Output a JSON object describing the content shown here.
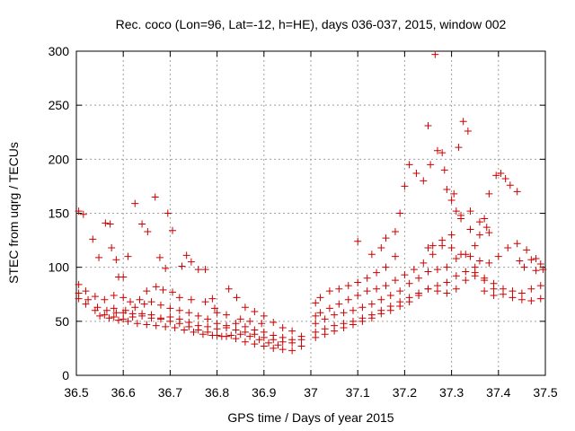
{
  "chart_data": {
    "type": "scatter",
    "title": "Rec. coco (Lon=96, Lat=-12, h=HE), days 036-037, 2015, window 002",
    "xlabel": "GPS time / Days of year 2015",
    "ylabel": "STEC from uqrg / TECUs",
    "xlim": [
      36.5,
      37.5
    ],
    "ylim": [
      0,
      300
    ],
    "xticks": [
      "36.5",
      "36.6",
      "36.7",
      "36.8",
      "36.9",
      "37",
      "37.1",
      "37.2",
      "37.3",
      "37.4",
      "37.5"
    ],
    "yticks": [
      "0",
      "50",
      "100",
      "150",
      "200",
      "250",
      "300"
    ],
    "grid": true,
    "marker": "+",
    "color": "#cc0000",
    "series": [
      {
        "points": [
          [
            36.505,
            152
          ],
          [
            36.515,
            149
          ],
          [
            36.535,
            126
          ],
          [
            36.548,
            109
          ],
          [
            36.562,
            141
          ],
          [
            36.572,
            140
          ],
          [
            36.575,
            118
          ],
          [
            36.585,
            107
          ],
          [
            36.59,
            91
          ],
          [
            36.6,
            91
          ],
          [
            36.61,
            110
          ],
          [
            36.625,
            159
          ],
          [
            36.64,
            140
          ],
          [
            36.652,
            133
          ],
          [
            36.668,
            165
          ],
          [
            36.678,
            109
          ],
          [
            36.69,
            99
          ],
          [
            36.695,
            150
          ],
          [
            36.705,
            134
          ],
          [
            36.725,
            101
          ],
          [
            36.735,
            111
          ],
          [
            36.745,
            105
          ],
          [
            36.76,
            98
          ],
          [
            36.775,
            98
          ],
          [
            36.79,
            71
          ],
          [
            36.8,
            58
          ],
          [
            36.825,
            80
          ],
          [
            36.842,
            72
          ],
          [
            36.86,
            63
          ],
          [
            36.88,
            59
          ],
          [
            36.9,
            55
          ],
          [
            36.92,
            49
          ],
          [
            36.94,
            44
          ],
          [
            36.96,
            41
          ],
          [
            36.98,
            36
          ],
          [
            36.505,
            84
          ],
          [
            36.52,
            78
          ],
          [
            36.54,
            73
          ],
          [
            36.56,
            70
          ],
          [
            36.58,
            74
          ],
          [
            36.6,
            72
          ],
          [
            36.615,
            68
          ],
          [
            36.635,
            70
          ],
          [
            36.65,
            78
          ],
          [
            36.67,
            82
          ],
          [
            36.685,
            79
          ],
          [
            36.705,
            77
          ],
          [
            36.72,
            72
          ],
          [
            36.745,
            70
          ],
          [
            36.775,
            68
          ],
          [
            36.795,
            62
          ],
          [
            36.82,
            56
          ],
          [
            36.85,
            52
          ],
          [
            36.87,
            50
          ],
          [
            36.895,
            48
          ],
          [
            36.505,
            76
          ],
          [
            36.525,
            70
          ],
          [
            36.545,
            63
          ],
          [
            36.565,
            60
          ],
          [
            36.585,
            58
          ],
          [
            36.605,
            60
          ],
          [
            36.625,
            63
          ],
          [
            36.645,
            66
          ],
          [
            36.66,
            68
          ],
          [
            36.68,
            65
          ],
          [
            36.7,
            62
          ],
          [
            36.72,
            60
          ],
          [
            36.74,
            58
          ],
          [
            36.76,
            55
          ],
          [
            36.78,
            52
          ],
          [
            36.8,
            48
          ],
          [
            36.82,
            44
          ],
          [
            36.84,
            42
          ],
          [
            36.86,
            40
          ],
          [
            36.88,
            38
          ],
          [
            36.9,
            35
          ],
          [
            36.92,
            33
          ],
          [
            36.94,
            31
          ],
          [
            36.96,
            30
          ],
          [
            36.98,
            33
          ],
          [
            36.505,
            71
          ],
          [
            36.52,
            66
          ],
          [
            36.54,
            60
          ],
          [
            36.56,
            56
          ],
          [
            36.58,
            54
          ],
          [
            36.6,
            52
          ],
          [
            36.62,
            54
          ],
          [
            36.64,
            57
          ],
          [
            36.66,
            56
          ],
          [
            36.68,
            53
          ],
          [
            36.7,
            50
          ],
          [
            36.72,
            48
          ],
          [
            36.74,
            45
          ],
          [
            36.76,
            42
          ],
          [
            36.78,
            40
          ],
          [
            36.8,
            37
          ],
          [
            36.82,
            36
          ],
          [
            36.84,
            34
          ],
          [
            36.86,
            31
          ],
          [
            36.88,
            29
          ],
          [
            36.9,
            27
          ],
          [
            36.92,
            25
          ],
          [
            36.94,
            24
          ],
          [
            36.96,
            23
          ],
          [
            36.98,
            27
          ],
          [
            36.55,
            55
          ],
          [
            36.57,
            53
          ],
          [
            36.59,
            51
          ],
          [
            36.61,
            50
          ],
          [
            36.63,
            48
          ],
          [
            36.65,
            47
          ],
          [
            36.67,
            46
          ],
          [
            36.69,
            45
          ],
          [
            36.71,
            44
          ],
          [
            36.73,
            42
          ],
          [
            36.75,
            40
          ],
          [
            36.77,
            38
          ],
          [
            36.79,
            37
          ],
          [
            36.81,
            36
          ],
          [
            36.83,
            37
          ],
          [
            36.85,
            38
          ],
          [
            36.87,
            36
          ],
          [
            36.89,
            33
          ],
          [
            36.91,
            30
          ],
          [
            36.93,
            28
          ],
          [
            36.58,
            62
          ],
          [
            36.6,
            58
          ],
          [
            36.62,
            57
          ],
          [
            36.64,
            55
          ],
          [
            36.66,
            53
          ],
          [
            36.68,
            52
          ],
          [
            36.7,
            54
          ],
          [
            36.72,
            52
          ],
          [
            36.74,
            49
          ],
          [
            36.76,
            46
          ],
          [
            36.78,
            45
          ],
          [
            36.8,
            43
          ],
          [
            36.82,
            46
          ],
          [
            36.84,
            48
          ],
          [
            36.86,
            45
          ],
          [
            36.88,
            42
          ],
          [
            36.9,
            40
          ],
          [
            36.92,
            37
          ],
          [
            36.94,
            35
          ],
          [
            36.96,
            33
          ],
          [
            37.01,
            67
          ],
          [
            37.02,
            72
          ],
          [
            37.04,
            78
          ],
          [
            37.06,
            80
          ],
          [
            37.08,
            83
          ],
          [
            37.1,
            86
          ],
          [
            37.12,
            90
          ],
          [
            37.14,
            95
          ],
          [
            37.16,
            100
          ],
          [
            37.18,
            110
          ],
          [
            37.1,
            124
          ],
          [
            37.13,
            112
          ],
          [
            37.15,
            118
          ],
          [
            37.16,
            127
          ],
          [
            37.18,
            133
          ],
          [
            37.19,
            150
          ],
          [
            37.2,
            175
          ],
          [
            37.21,
            195
          ],
          [
            37.225,
            187
          ],
          [
            37.24,
            180
          ],
          [
            37.25,
            231
          ],
          [
            37.255,
            195
          ],
          [
            37.265,
            297
          ],
          [
            37.27,
            208
          ],
          [
            37.28,
            206
          ],
          [
            37.285,
            190
          ],
          [
            37.29,
            172
          ],
          [
            37.3,
            162
          ],
          [
            37.305,
            168
          ],
          [
            37.31,
            152
          ],
          [
            37.315,
            211
          ],
          [
            37.32,
            148
          ],
          [
            37.325,
            235
          ],
          [
            37.335,
            226
          ],
          [
            37.34,
            135
          ],
          [
            37.35,
            120
          ],
          [
            37.36,
            130
          ],
          [
            37.37,
            145
          ],
          [
            37.375,
            137
          ],
          [
            37.38,
            168
          ],
          [
            37.395,
            185
          ],
          [
            37.405,
            187
          ],
          [
            37.415,
            182
          ],
          [
            37.425,
            176
          ],
          [
            37.44,
            170
          ],
          [
            37.445,
            106
          ],
          [
            37.455,
            100
          ],
          [
            37.47,
            107
          ],
          [
            37.48,
            97
          ],
          [
            37.495,
            98
          ],
          [
            37.01,
            55
          ],
          [
            37.02,
            58
          ],
          [
            37.04,
            62
          ],
          [
            37.06,
            66
          ],
          [
            37.08,
            70
          ],
          [
            37.1,
            74
          ],
          [
            37.12,
            78
          ],
          [
            37.14,
            80
          ],
          [
            37.16,
            83
          ],
          [
            37.18,
            88
          ],
          [
            37.2,
            93
          ],
          [
            37.22,
            98
          ],
          [
            37.24,
            104
          ],
          [
            37.26,
            112
          ],
          [
            37.28,
            120
          ],
          [
            37.3,
            130
          ],
          [
            37.32,
            145
          ],
          [
            37.34,
            152
          ],
          [
            37.36,
            142
          ],
          [
            37.38,
            132
          ],
          [
            37.01,
            48
          ],
          [
            37.03,
            52
          ],
          [
            37.05,
            56
          ],
          [
            37.07,
            58
          ],
          [
            37.09,
            60
          ],
          [
            37.11,
            63
          ],
          [
            37.13,
            66
          ],
          [
            37.15,
            70
          ],
          [
            37.17,
            74
          ],
          [
            37.19,
            78
          ],
          [
            37.21,
            85
          ],
          [
            37.23,
            90
          ],
          [
            37.25,
            96
          ],
          [
            37.27,
            98
          ],
          [
            37.29,
            100
          ],
          [
            37.31,
            108
          ],
          [
            37.33,
            112
          ],
          [
            37.35,
            100
          ],
          [
            37.37,
            90
          ],
          [
            37.39,
            85
          ],
          [
            37.41,
            80
          ],
          [
            37.43,
            78
          ],
          [
            37.45,
            76
          ],
          [
            37.47,
            80
          ],
          [
            37.49,
            83
          ],
          [
            37.01,
            40
          ],
          [
            37.03,
            43
          ],
          [
            37.05,
            46
          ],
          [
            37.07,
            48
          ],
          [
            37.09,
            50
          ],
          [
            37.11,
            53
          ],
          [
            37.13,
            56
          ],
          [
            37.15,
            60
          ],
          [
            37.17,
            64
          ],
          [
            37.19,
            68
          ],
          [
            37.21,
            72
          ],
          [
            37.23,
            76
          ],
          [
            37.25,
            80
          ],
          [
            37.27,
            83
          ],
          [
            37.29,
            86
          ],
          [
            37.31,
            92
          ],
          [
            37.33,
            96
          ],
          [
            37.35,
            95
          ],
          [
            37.37,
            88
          ],
          [
            37.39,
            80
          ],
          [
            37.41,
            75
          ],
          [
            37.43,
            72
          ],
          [
            37.45,
            70
          ],
          [
            37.47,
            69
          ],
          [
            37.49,
            71
          ],
          [
            37.01,
            35
          ],
          [
            37.03,
            38
          ],
          [
            37.05,
            41
          ],
          [
            37.07,
            44
          ],
          [
            37.09,
            47
          ],
          [
            37.11,
            50
          ],
          [
            37.13,
            53
          ],
          [
            37.15,
            57
          ],
          [
            37.17,
            60
          ],
          [
            37.19,
            64
          ],
          [
            37.21,
            68
          ],
          [
            37.23,
            74
          ],
          [
            37.25,
            80
          ],
          [
            37.27,
            78
          ],
          [
            37.29,
            76
          ],
          [
            37.31,
            80
          ],
          [
            37.33,
            88
          ],
          [
            37.35,
            92
          ],
          [
            37.37,
            78
          ],
          [
            37.39,
            74
          ],
          [
            37.25,
            118
          ],
          [
            37.26,
            120
          ],
          [
            37.28,
            125
          ],
          [
            37.3,
            118
          ],
          [
            37.32,
            112
          ],
          [
            37.34,
            110
          ],
          [
            37.36,
            106
          ],
          [
            37.38,
            104
          ],
          [
            37.4,
            110
          ],
          [
            37.42,
            118
          ],
          [
            37.44,
            122
          ],
          [
            37.46,
            116
          ],
          [
            37.48,
            108
          ],
          [
            37.49,
            103
          ]
        ]
      }
    ]
  }
}
